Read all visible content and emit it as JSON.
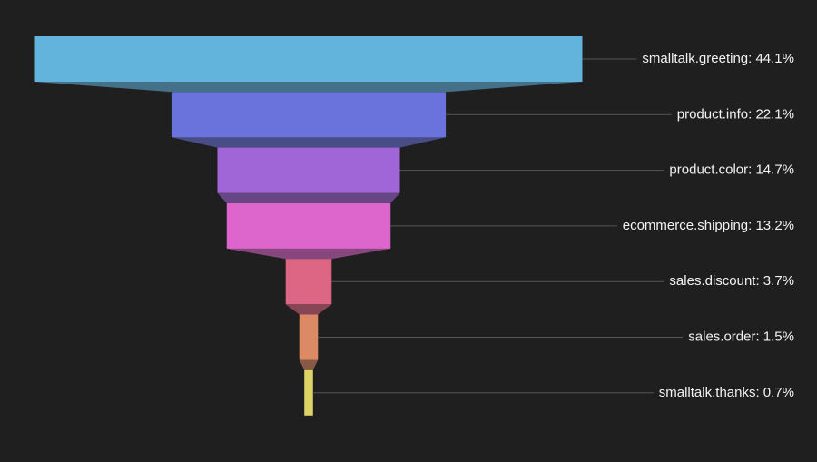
{
  "chart_data": {
    "type": "funnel",
    "values": [
      44.1,
      22.1,
      14.7,
      13.2,
      3.7,
      1.5,
      0.7
    ],
    "value_labels": [
      "smalltalk.greeting: 44.1%",
      "product.info: 22.1%",
      "product.color: 14.7%",
      "ecommerce.shipping: 13.2%",
      "sales.discount: 3.7%",
      "sales.order: 1.5%",
      "smalltalk.thanks: 0.7%"
    ],
    "colors": [
      "#63b4dc",
      "#6a72dc",
      "#a066d8",
      "#dc66cc",
      "#dc6684",
      "#dc8a66",
      "#dcd266"
    ]
  }
}
